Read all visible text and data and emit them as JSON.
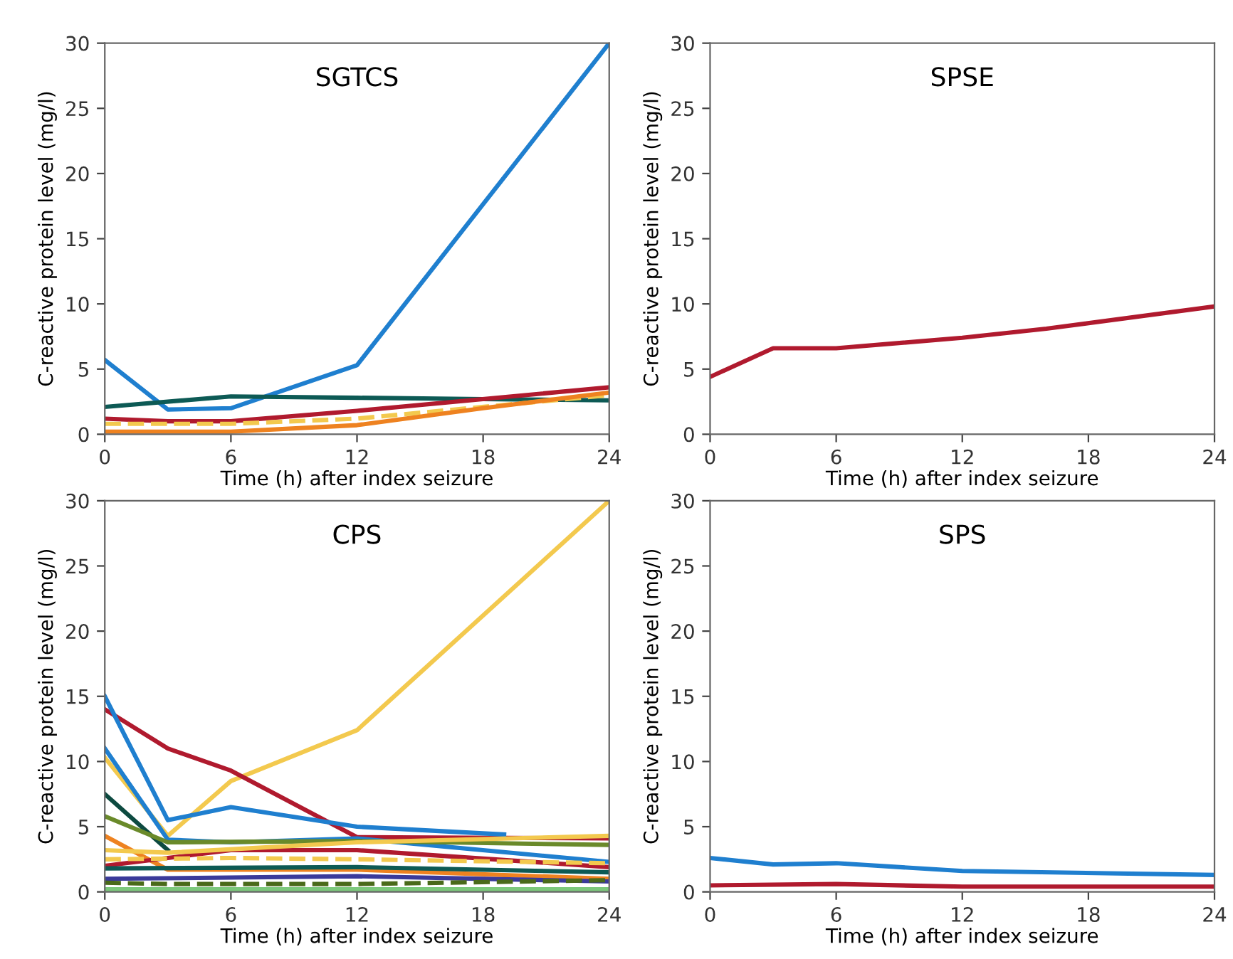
{
  "chart_data": [
    {
      "type": "line",
      "title": "SGTCS",
      "xlabel": "Time (h) after index seizure",
      "ylabel": "C-reactive protein level (mg/l)",
      "xlim": [
        0,
        24
      ],
      "ylim": [
        0,
        30
      ],
      "xticks": [
        0,
        6,
        12,
        18,
        24
      ],
      "yticks": [
        0,
        5,
        10,
        15,
        20,
        25,
        30
      ],
      "grid": false,
      "legend": false,
      "series": [
        {
          "color": "#1f7fcf",
          "x": [
            0,
            3,
            6,
            12,
            24
          ],
          "values": [
            5.7,
            1.9,
            2.0,
            5.3,
            30
          ]
        },
        {
          "color": "#0d5a55",
          "x": [
            0,
            6,
            12,
            18,
            24
          ],
          "values": [
            2.1,
            2.9,
            2.8,
            2.7,
            2.6
          ]
        },
        {
          "color": "#b01a2e",
          "x": [
            0,
            3,
            6,
            12,
            24
          ],
          "values": [
            1.2,
            1.0,
            1.0,
            1.8,
            3.6
          ]
        },
        {
          "color": "#f3c94e",
          "line_style": "dashed",
          "x": [
            0,
            6,
            12,
            24
          ],
          "values": [
            0.8,
            0.8,
            1.2,
            3.0
          ]
        },
        {
          "color": "#ee8220",
          "x": [
            0,
            6,
            12,
            18,
            24
          ],
          "values": [
            0.2,
            0.2,
            0.7,
            2.0,
            3.2
          ]
        }
      ]
    },
    {
      "type": "line",
      "title": "SPSE",
      "xlabel": "Time (h) after index seizure",
      "ylabel": "C-reactive protein level (mg/l)",
      "xlim": [
        0,
        24
      ],
      "ylim": [
        0,
        30
      ],
      "xticks": [
        0,
        6,
        12,
        18,
        24
      ],
      "yticks": [
        0,
        5,
        10,
        15,
        20,
        25,
        30
      ],
      "grid": false,
      "legend": false,
      "series": [
        {
          "color": "#b01a2e",
          "x": [
            0,
            3,
            6,
            12,
            16,
            24
          ],
          "values": [
            4.4,
            6.6,
            6.6,
            7.4,
            8.1,
            9.8
          ]
        }
      ]
    },
    {
      "type": "line",
      "title": "CPS",
      "xlabel": "Time (h) after index seizure",
      "ylabel": "C-reactive protein level (mg/l)",
      "xlim": [
        0,
        24
      ],
      "ylim": [
        0,
        30
      ],
      "xticks": [
        0,
        6,
        12,
        18,
        24
      ],
      "yticks": [
        0,
        5,
        10,
        15,
        20,
        25,
        30
      ],
      "grid": false,
      "legend": false,
      "series": [
        {
          "color": "#f3c94e",
          "x": [
            0,
            3,
            6,
            12,
            24
          ],
          "values": [
            10.3,
            4.3,
            8.5,
            12.4,
            30
          ]
        },
        {
          "color": "#b01a2e",
          "x": [
            0,
            3,
            6,
            12,
            24
          ],
          "values": [
            14,
            11,
            9.3,
            4.2,
            4.1
          ]
        },
        {
          "color": "#1f7fcf",
          "x": [
            0,
            3,
            6,
            12,
            19
          ],
          "values": [
            15,
            5.5,
            6.5,
            5.0,
            4.4
          ]
        },
        {
          "color": "#1f7fcf",
          "x": [
            0,
            3,
            6,
            12,
            24
          ],
          "values": [
            11,
            4.0,
            3.8,
            4.1,
            2.3
          ]
        },
        {
          "color": "#0d4a40",
          "x": [
            0,
            3
          ],
          "values": [
            7.5,
            3.2
          ]
        },
        {
          "color": "#6a8a2a",
          "x": [
            0,
            3,
            12,
            24
          ],
          "values": [
            5.8,
            3.8,
            3.9,
            3.6
          ]
        },
        {
          "color": "#ee8220",
          "x": [
            0,
            3,
            12,
            24
          ],
          "values": [
            4.3,
            1.7,
            1.7,
            1.0
          ]
        },
        {
          "color": "#b01a2e",
          "x": [
            0,
            3,
            6,
            12,
            24
          ],
          "values": [
            2.0,
            2.6,
            3.2,
            3.2,
            1.9
          ]
        },
        {
          "color": "#f3c94e",
          "x": [
            0,
            3,
            12,
            24
          ],
          "values": [
            3.2,
            3.0,
            3.8,
            4.3
          ]
        },
        {
          "color": "#0d5a55",
          "x": [
            0,
            12,
            24
          ],
          "values": [
            1.8,
            1.9,
            1.5
          ]
        },
        {
          "color": "#3a3a9a",
          "x": [
            0,
            12,
            24
          ],
          "values": [
            1.0,
            1.2,
            0.8
          ]
        },
        {
          "color": "#f3c94e",
          "line_style": "dashed",
          "x": [
            0,
            6,
            12,
            24
          ],
          "values": [
            2.5,
            2.6,
            2.5,
            2.2
          ]
        },
        {
          "color": "#4a6a1a",
          "line_style": "dashed",
          "x": [
            0,
            3,
            12,
            24
          ],
          "values": [
            0.7,
            0.6,
            0.6,
            0.9
          ]
        },
        {
          "color": "#7cc87c",
          "x": [
            0,
            24
          ],
          "values": [
            0.2,
            0.2
          ]
        }
      ]
    },
    {
      "type": "line",
      "title": "SPS",
      "xlabel": "Time (h) after index seizure",
      "ylabel": "C-reactive protein level (mg/l)",
      "xlim": [
        0,
        24
      ],
      "ylim": [
        0,
        30
      ],
      "xticks": [
        0,
        6,
        12,
        18,
        24
      ],
      "yticks": [
        0,
        5,
        10,
        15,
        20,
        25,
        30
      ],
      "grid": false,
      "legend": false,
      "series": [
        {
          "color": "#1f7fcf",
          "x": [
            0,
            3,
            6,
            12,
            24
          ],
          "values": [
            2.6,
            2.1,
            2.2,
            1.6,
            1.3
          ]
        },
        {
          "color": "#b01a2e",
          "x": [
            0,
            6,
            12,
            24
          ],
          "values": [
            0.5,
            0.6,
            0.4,
            0.4
          ]
        }
      ]
    }
  ]
}
